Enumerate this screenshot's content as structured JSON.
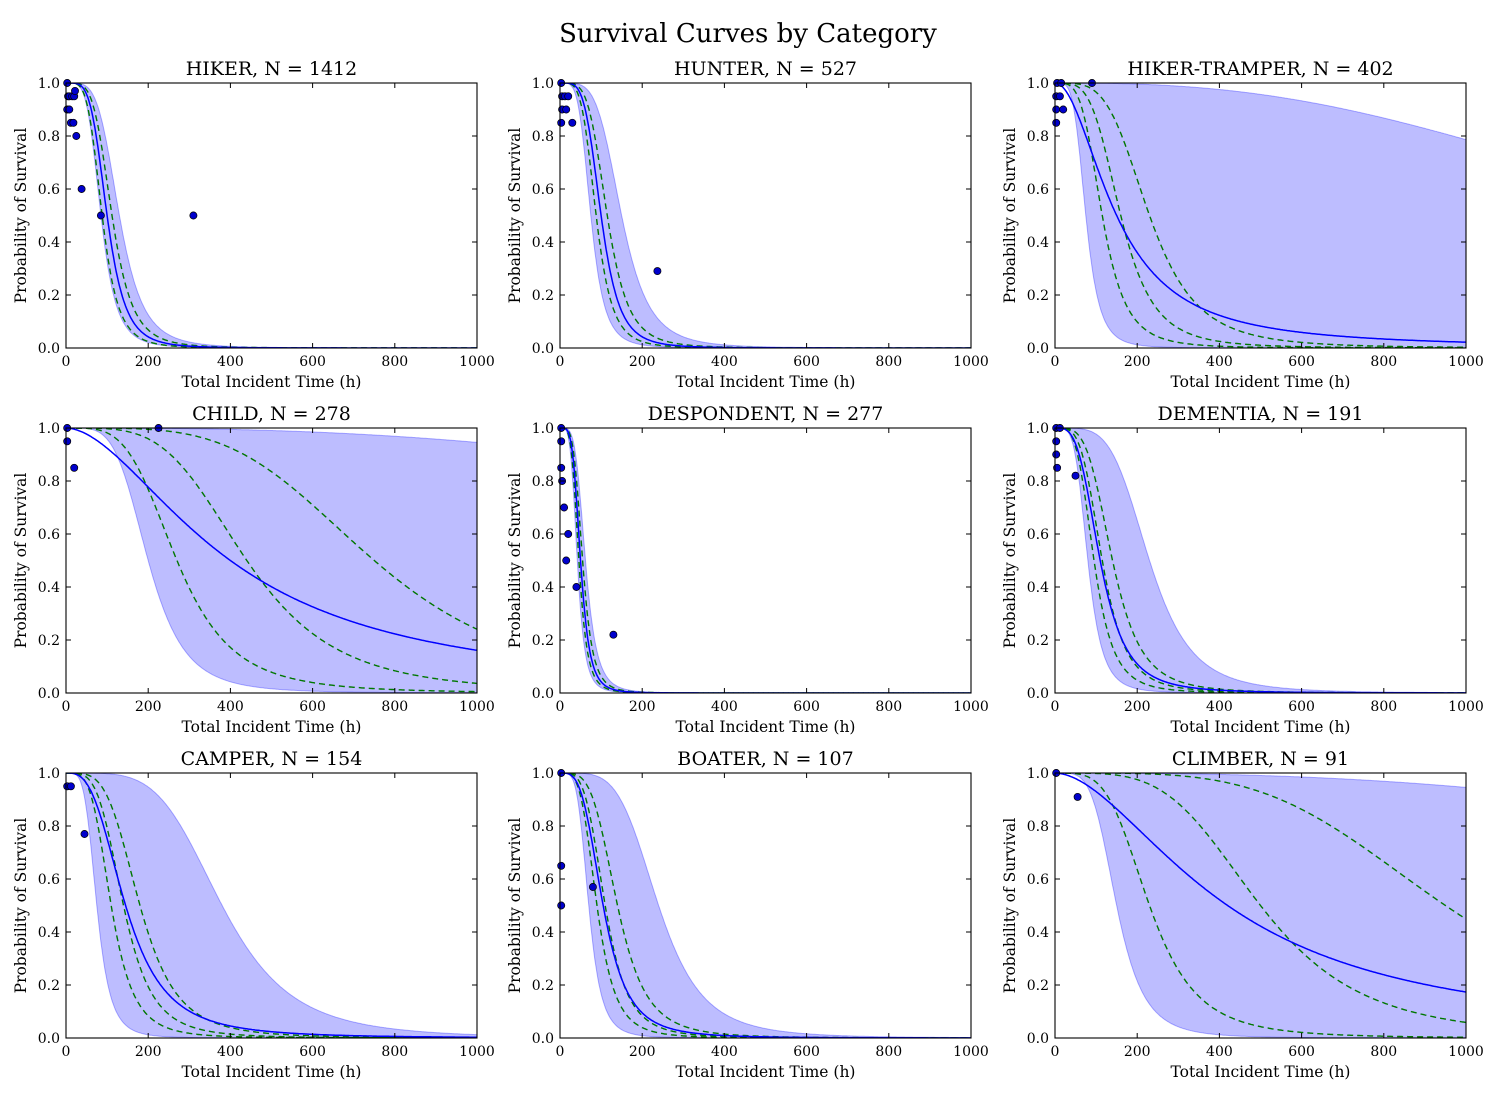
{
  "title": "Survival Curves by Category",
  "chart_data": [
    {
      "type": "line",
      "title": "HIKER, N = 1412",
      "xlabel": "Total Incident Time (h)",
      "ylabel": "Probability of Survival",
      "xlim": [
        0,
        1000
      ],
      "ylim": [
        0,
        1.0
      ],
      "xticks": [
        "0",
        "200",
        "400",
        "600",
        "800",
        "1000"
      ],
      "yticks": [
        "0.0",
        "0.2",
        "0.4",
        "0.6",
        "0.8",
        "1.0"
      ],
      "mean": {
        "t50": 100,
        "k": 4.5
      },
      "band": {
        "lower": {
          "t50": 85,
          "k": 4.5
        },
        "upper": {
          "t50": 130,
          "k": 4.5
        }
      },
      "dashed": [
        {
          "t50": 88,
          "k": 4.5
        },
        {
          "t50": 112,
          "k": 4.5
        }
      ],
      "points": [
        [
          3,
          1.0
        ],
        [
          5,
          0.95
        ],
        [
          8,
          0.95
        ],
        [
          15,
          0.95
        ],
        [
          20,
          0.95
        ],
        [
          22,
          0.97
        ],
        [
          3,
          0.9
        ],
        [
          8,
          0.9
        ],
        [
          12,
          0.85
        ],
        [
          18,
          0.85
        ],
        [
          25,
          0.8
        ],
        [
          38,
          0.6
        ],
        [
          85,
          0.5
        ],
        [
          310,
          0.5
        ]
      ]
    },
    {
      "type": "line",
      "title": "HUNTER, N = 527",
      "xlabel": "Total Incident Time (h)",
      "ylabel": "Probability of Survival",
      "xlim": [
        0,
        1000
      ],
      "ylim": [
        0,
        1.0
      ],
      "xticks": [
        "0",
        "200",
        "400",
        "600",
        "800",
        "1000"
      ],
      "yticks": [
        "0.0",
        "0.2",
        "0.4",
        "0.6",
        "0.8",
        "1.0"
      ],
      "mean": {
        "t50": 100,
        "k": 4.5
      },
      "band": {
        "lower": {
          "t50": 75,
          "k": 4.5
        },
        "upper": {
          "t50": 150,
          "k": 4.5
        }
      },
      "dashed": [
        {
          "t50": 88,
          "k": 4.5
        },
        {
          "t50": 115,
          "k": 4.5
        }
      ],
      "points": [
        [
          3,
          1.0
        ],
        [
          5,
          0.95
        ],
        [
          12,
          0.95
        ],
        [
          20,
          0.95
        ],
        [
          5,
          0.9
        ],
        [
          15,
          0.9
        ],
        [
          3,
          0.85
        ],
        [
          30,
          0.85
        ],
        [
          237,
          0.29
        ]
      ]
    },
    {
      "type": "line",
      "title": "HIKER-TRAMPER, N = 402",
      "xlabel": "Total Incident Time (h)",
      "ylabel": "Probability of Survival",
      "xlim": [
        0,
        1000
      ],
      "ylim": [
        0,
        1.0
      ],
      "xticks": [
        "0",
        "200",
        "400",
        "600",
        "800",
        "1000"
      ],
      "yticks": [
        "0.0",
        "0.2",
        "0.4",
        "0.6",
        "0.8",
        "1.0"
      ],
      "mean": {
        "t50": 150,
        "k": 2.0
      },
      "band": {
        "lower": {
          "t50": 75,
          "k": 4.5
        },
        "upper": {
          "t50": 1650,
          "k": 2.6
        }
      },
      "dashed": [
        {
          "t50": 115,
          "k": 4.0
        },
        {
          "t50": 160,
          "k": 4.0
        },
        {
          "t50": 230,
          "k": 4.0
        }
      ],
      "points": [
        [
          5,
          1.0
        ],
        [
          15,
          1.0
        ],
        [
          3,
          0.95
        ],
        [
          12,
          0.95
        ],
        [
          3,
          0.9
        ],
        [
          20,
          0.9
        ],
        [
          3,
          0.85
        ],
        [
          90,
          1.0
        ]
      ]
    },
    {
      "type": "line",
      "title": "CHILD, N = 278",
      "xlabel": "Total Incident Time (h)",
      "ylabel": "Probability of Survival",
      "xlim": [
        0,
        1000
      ],
      "ylim": [
        0,
        1.0
      ],
      "xticks": [
        "0",
        "200",
        "400",
        "600",
        "800",
        "1000"
      ],
      "yticks": [
        "0.0",
        "0.2",
        "0.4",
        "0.6",
        "0.8",
        "1.0"
      ],
      "mean": {
        "t50": 400,
        "k": 1.8
      },
      "band": {
        "lower": {
          "t50": 200,
          "k": 4.5
        },
        "upper": {
          "t50": 3000,
          "k": 2.6
        }
      },
      "dashed": [
        {
          "t50": 270,
          "k": 4.0
        },
        {
          "t50": 440,
          "k": 4.0
        },
        {
          "t50": 750,
          "k": 4.0
        }
      ],
      "points": [
        [
          3,
          1.0
        ],
        [
          3,
          0.95
        ],
        [
          20,
          0.85
        ],
        [
          225,
          1.0
        ]
      ]
    },
    {
      "type": "line",
      "title": "DESPONDENT, N = 277",
      "xlabel": "Total Incident Time (h)",
      "ylabel": "Probability of Survival",
      "xlim": [
        0,
        1000
      ],
      "ylim": [
        0,
        1.0
      ],
      "xticks": [
        "0",
        "200",
        "400",
        "600",
        "800",
        "1000"
      ],
      "yticks": [
        "0.0",
        "0.2",
        "0.4",
        "0.6",
        "0.8",
        "1.0"
      ],
      "mean": {
        "t50": 50,
        "k": 4.5
      },
      "band": {
        "lower": {
          "t50": 42,
          "k": 4.5
        },
        "upper": {
          "t50": 62,
          "k": 4.5
        }
      },
      "dashed": [
        {
          "t50": 46,
          "k": 4.5
        },
        {
          "t50": 55,
          "k": 4.5
        }
      ],
      "points": [
        [
          3,
          1.0
        ],
        [
          3,
          0.95
        ],
        [
          3,
          0.85
        ],
        [
          5,
          0.8
        ],
        [
          10,
          0.7
        ],
        [
          20,
          0.6
        ],
        [
          15,
          0.5
        ],
        [
          40,
          0.4
        ],
        [
          130,
          0.22
        ]
      ]
    },
    {
      "type": "line",
      "title": "DEMENTIA, N = 191",
      "xlabel": "Total Incident Time (h)",
      "ylabel": "Probability of Survival",
      "xlim": [
        0,
        1000
      ],
      "ylim": [
        0,
        1.0
      ],
      "xticks": [
        "0",
        "200",
        "400",
        "600",
        "800",
        "1000"
      ],
      "yticks": [
        "0.0",
        "0.2",
        "0.4",
        "0.6",
        "0.8",
        "1.0"
      ],
      "mean": {
        "t50": 110,
        "k": 3.5
      },
      "band": {
        "lower": {
          "t50": 80,
          "k": 4.5
        },
        "upper": {
          "t50": 230,
          "k": 4.5
        }
      },
      "dashed": [
        {
          "t50": 95,
          "k": 4.0
        },
        {
          "t50": 115,
          "k": 4.0
        },
        {
          "t50": 140,
          "k": 4.0
        }
      ],
      "points": [
        [
          3,
          1.0
        ],
        [
          12,
          1.0
        ],
        [
          3,
          0.95
        ],
        [
          3,
          0.9
        ],
        [
          5,
          0.85
        ],
        [
          50,
          0.82
        ]
      ]
    },
    {
      "type": "line",
      "title": "CAMPER, N = 154",
      "xlabel": "Total Incident Time (h)",
      "ylabel": "Probability of Survival",
      "xlim": [
        0,
        1000
      ],
      "ylim": [
        0,
        1.0
      ],
      "xticks": [
        "0",
        "200",
        "400",
        "600",
        "800",
        "1000"
      ],
      "yticks": [
        "0.0",
        "0.2",
        "0.4",
        "0.6",
        "0.8",
        "1.0"
      ],
      "mean": {
        "t50": 145,
        "k": 3.0
      },
      "band": {
        "lower": {
          "t50": 75,
          "k": 4.5
        },
        "upper": {
          "t50": 380,
          "k": 4.5
        }
      },
      "dashed": [
        {
          "t50": 110,
          "k": 4.0
        },
        {
          "t50": 140,
          "k": 4.0
        },
        {
          "t50": 180,
          "k": 4.0
        }
      ],
      "points": [
        [
          3,
          0.95
        ],
        [
          12,
          0.95
        ],
        [
          45,
          0.77
        ]
      ]
    },
    {
      "type": "line",
      "title": "BOATER, N = 107",
      "xlabel": "Total Incident Time (h)",
      "ylabel": "Probability of Survival",
      "xlim": [
        0,
        1000
      ],
      "ylim": [
        0,
        1.0
      ],
      "xticks": [
        "0",
        "200",
        "400",
        "600",
        "800",
        "1000"
      ],
      "yticks": [
        "0.0",
        "0.2",
        "0.4",
        "0.6",
        "0.8",
        "1.0"
      ],
      "mean": {
        "t50": 105,
        "k": 3.5
      },
      "band": {
        "lower": {
          "t50": 70,
          "k": 4.5
        },
        "upper": {
          "t50": 240,
          "k": 4.5
        }
      },
      "dashed": [
        {
          "t50": 90,
          "k": 4.0
        },
        {
          "t50": 110,
          "k": 4.0
        },
        {
          "t50": 140,
          "k": 4.0
        }
      ],
      "points": [
        [
          3,
          1.0
        ],
        [
          3,
          0.65
        ],
        [
          3,
          0.5
        ],
        [
          80,
          0.57
        ]
      ]
    },
    {
      "type": "line",
      "title": "CLIMBER, N = 91",
      "xlabel": "Total Incident Time (h)",
      "ylabel": "Probability of Survival",
      "xlim": [
        0,
        1000
      ],
      "ylim": [
        0,
        1.0
      ],
      "xticks": [
        "0",
        "200",
        "400",
        "600",
        "800",
        "1000"
      ],
      "yticks": [
        "0.0",
        "0.2",
        "0.4",
        "0.6",
        "0.8",
        "1.0"
      ],
      "mean": {
        "t50": 420,
        "k": 1.8
      },
      "band": {
        "lower": {
          "t50": 150,
          "k": 4.5
        },
        "upper": {
          "t50": 3000,
          "k": 2.6
        }
      },
      "dashed": [
        {
          "t50": 230,
          "k": 4.0
        },
        {
          "t50": 500,
          "k": 4.0
        },
        {
          "t50": 950,
          "k": 4.0
        }
      ],
      "points": [
        [
          3,
          1.0
        ],
        [
          55,
          0.91
        ]
      ]
    }
  ],
  "colors": {
    "band": "#0000ff",
    "mean_line": "#0000ff",
    "dashed": "#007700",
    "points_fill": "#0000cc"
  }
}
